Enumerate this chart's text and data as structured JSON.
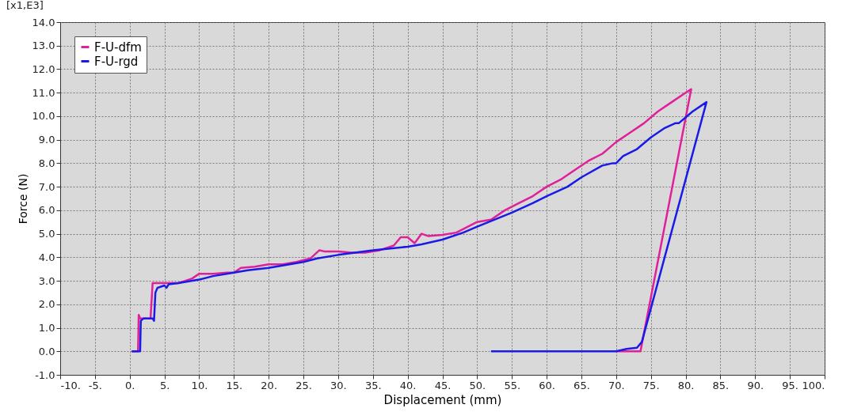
{
  "chart_data": {
    "type": "line",
    "xlabel": "Displacement (mm)",
    "ylabel": "Force (N)",
    "annotations": [
      "[x1,E3]"
    ],
    "xlim": [
      -10,
      100
    ],
    "ylim": [
      -1,
      14
    ],
    "xticks": [
      {
        "value": -10,
        "label": "-10."
      },
      {
        "value": -5,
        "label": "-5."
      },
      {
        "value": 0,
        "label": "0."
      },
      {
        "value": 5,
        "label": "5."
      },
      {
        "value": 10,
        "label": "10."
      },
      {
        "value": 15,
        "label": "15."
      },
      {
        "value": 20,
        "label": "20."
      },
      {
        "value": 25,
        "label": "25."
      },
      {
        "value": 30,
        "label": "30."
      },
      {
        "value": 35,
        "label": "35."
      },
      {
        "value": 40,
        "label": "40."
      },
      {
        "value": 45,
        "label": "45."
      },
      {
        "value": 50,
        "label": "50."
      },
      {
        "value": 55,
        "label": "55."
      },
      {
        "value": 60,
        "label": "60."
      },
      {
        "value": 65,
        "label": "65."
      },
      {
        "value": 70,
        "label": "70."
      },
      {
        "value": 75,
        "label": "75."
      },
      {
        "value": 80,
        "label": "80."
      },
      {
        "value": 85,
        "label": "85."
      },
      {
        "value": 90,
        "label": "90."
      },
      {
        "value": 95,
        "label": "95."
      },
      {
        "value": 100,
        "label": "100."
      }
    ],
    "yticks": [
      {
        "value": -1,
        "label": "-1.0"
      },
      {
        "value": 0,
        "label": "0.0"
      },
      {
        "value": 1,
        "label": "1.0"
      },
      {
        "value": 2,
        "label": "2.0"
      },
      {
        "value": 3,
        "label": "3.0"
      },
      {
        "value": 4,
        "label": "4.0"
      },
      {
        "value": 5,
        "label": "5.0"
      },
      {
        "value": 6,
        "label": "6.0"
      },
      {
        "value": 7,
        "label": "7.0"
      },
      {
        "value": 8,
        "label": "8.0"
      },
      {
        "value": 9,
        "label": "9.0"
      },
      {
        "value": 10,
        "label": "10.0"
      },
      {
        "value": 11,
        "label": "11.0"
      },
      {
        "value": 12,
        "label": "12.0"
      },
      {
        "value": 13,
        "label": "13.0"
      },
      {
        "value": 14,
        "label": "14.0"
      }
    ],
    "grid": true,
    "legend": "top left",
    "line_style": "solid",
    "series": [
      {
        "name": "F-U-dfm",
        "color": "#e0209a",
        "x": [
          0.3,
          1.2,
          1.3,
          1.5,
          3.0,
          3.3,
          5,
          7,
          8,
          9,
          10,
          12,
          14,
          15,
          16,
          18,
          20,
          22,
          24,
          26,
          27.3,
          28,
          30,
          32,
          34,
          36,
          38,
          39,
          40,
          41,
          42,
          43,
          45,
          47,
          49,
          50,
          52,
          54,
          56,
          58,
          60,
          62,
          64,
          66,
          68,
          70,
          72,
          74,
          76,
          78,
          80,
          80.8,
          73.5,
          70
        ],
        "values": [
          0,
          0,
          1.55,
          1.4,
          1.4,
          2.9,
          2.9,
          2.9,
          3.0,
          3.1,
          3.3,
          3.3,
          3.35,
          3.35,
          3.55,
          3.6,
          3.7,
          3.7,
          3.8,
          3.95,
          4.3,
          4.25,
          4.25,
          4.2,
          4.2,
          4.3,
          4.5,
          4.85,
          4.85,
          4.6,
          5.0,
          4.9,
          4.95,
          5.05,
          5.35,
          5.5,
          5.6,
          6.0,
          6.3,
          6.6,
          7.0,
          7.3,
          7.7,
          8.1,
          8.4,
          8.9,
          9.3,
          9.7,
          10.2,
          10.6,
          11.0,
          11.15,
          0,
          0
        ]
      },
      {
        "name": "F-U-rgd",
        "color": "#1a1ae6",
        "x": [
          0.3,
          1.5,
          1.6,
          2,
          3.3,
          3.5,
          3.7,
          4,
          5,
          5.3,
          5.6,
          7,
          10,
          12,
          15,
          17,
          20,
          22,
          25,
          27,
          30,
          35,
          40,
          42,
          45,
          48,
          50,
          55,
          58,
          60,
          63,
          65,
          68,
          69.5,
          70,
          71,
          73,
          75,
          77,
          78.5,
          79,
          81,
          83,
          73.7,
          73,
          71.5,
          70,
          52
        ],
        "values": [
          0,
          0,
          1.3,
          1.4,
          1.4,
          1.3,
          2.5,
          2.7,
          2.8,
          2.7,
          2.85,
          2.9,
          3.05,
          3.2,
          3.35,
          3.45,
          3.55,
          3.65,
          3.8,
          3.95,
          4.1,
          4.3,
          4.45,
          4.55,
          4.75,
          5.05,
          5.3,
          5.9,
          6.3,
          6.6,
          7.0,
          7.4,
          7.9,
          8.0,
          8.0,
          8.3,
          8.6,
          9.1,
          9.5,
          9.7,
          9.7,
          10.2,
          10.6,
          0.4,
          0.15,
          0.1,
          0,
          0
        ]
      }
    ]
  }
}
